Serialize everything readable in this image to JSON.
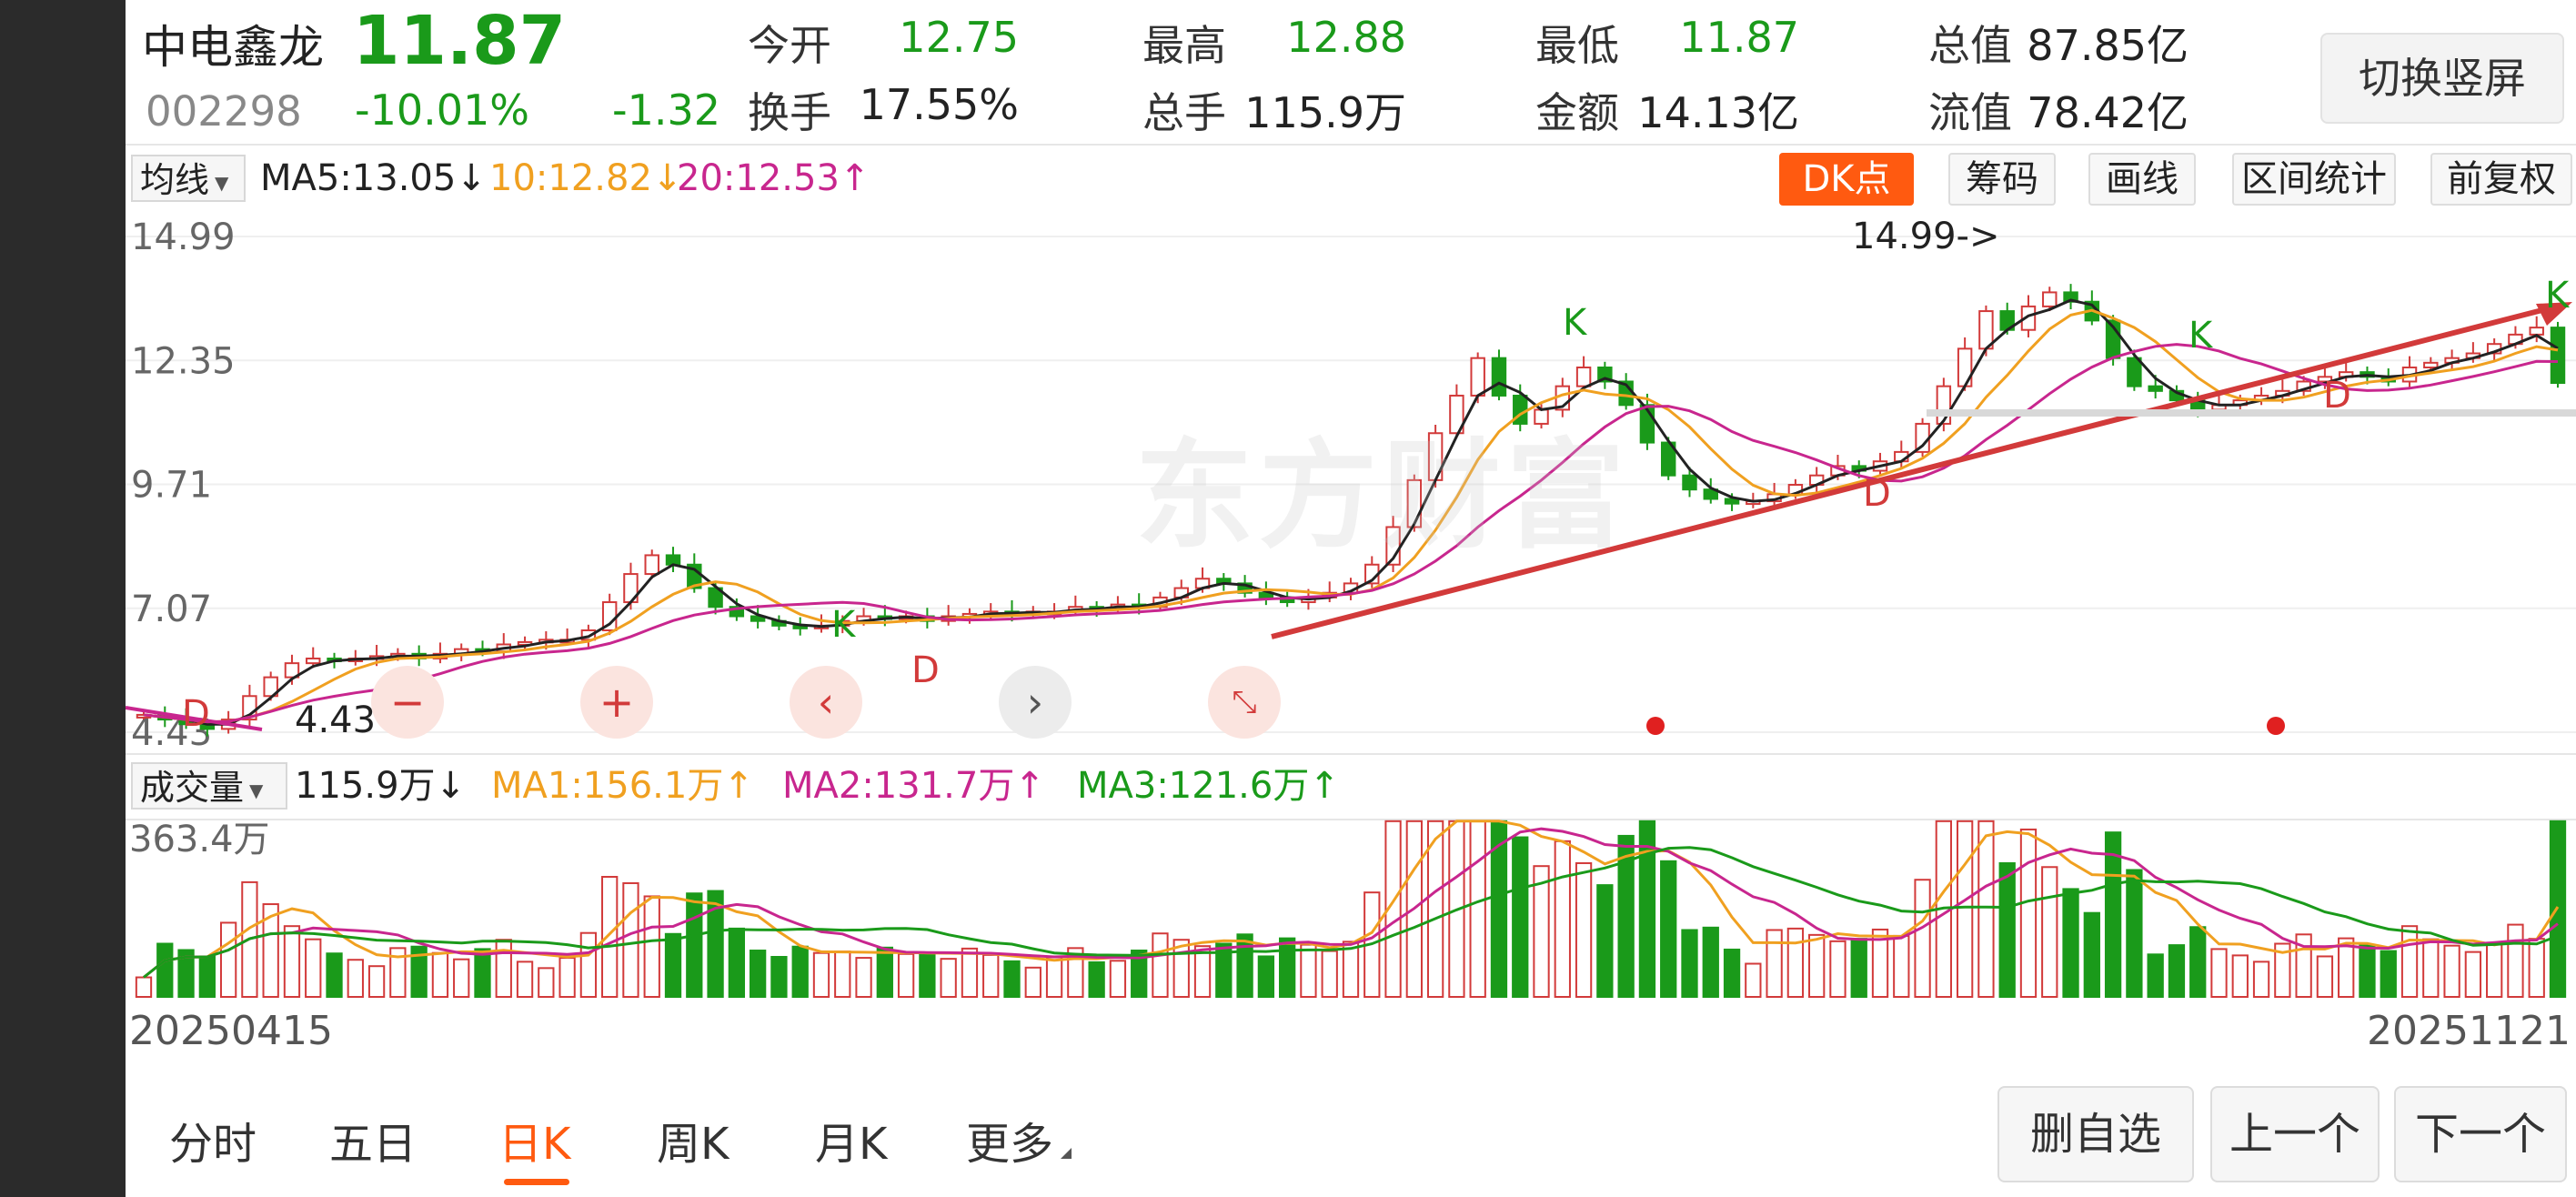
{
  "stock": {
    "name": "中电鑫龙",
    "code": "002298",
    "price": "11.87",
    "change_pct": "-10.01%",
    "change": "-1.32"
  },
  "quote": {
    "open_label": "今开",
    "open": "12.75",
    "high_label": "最高",
    "high": "12.88",
    "low_label": "最低",
    "low": "11.87",
    "mktcap_label": "总值",
    "mktcap": "87.85亿",
    "turnover_label": "换手",
    "turnover": "17.55%",
    "volume_label": "总手",
    "volume": "115.9万",
    "amount_label": "金额",
    "amount": "14.13亿",
    "float_label": "流值",
    "float": "78.42亿"
  },
  "switch_label": "切换竖屏",
  "ma_bar": {
    "selector": "均线",
    "ma5": "MA5:13.05↓",
    "ma10": "10:12.82↓",
    "ma20": "20:12.53↑"
  },
  "tools": {
    "dk": "DK点",
    "chips": "筹码",
    "draw": "画线",
    "range_stats": "区间统计",
    "adjust": "前复权"
  },
  "price_axis": [
    "14.99",
    "12.35",
    "9.71",
    "7.07",
    "4.43"
  ],
  "annotations": {
    "high_marker": "14.99->",
    "low_marker": "4.43",
    "k": "K",
    "d": "D"
  },
  "watermark": "东方财富",
  "volume_bar": {
    "selector": "成交量",
    "current": "115.9万↓",
    "ma1": "MA1:156.1万↑",
    "ma2": "MA2:131.7万↑",
    "ma3": "MA3:121.6万↑"
  },
  "volume_axis_max": "363.4万",
  "date_start": "20250415",
  "date_end": "20251121",
  "tabs": [
    "分时",
    "五日",
    "日K",
    "周K",
    "月K",
    "更多"
  ],
  "active_tab": "日K",
  "buttons": {
    "remove_watch": "删自选",
    "prev": "上一个",
    "next": "下一个"
  },
  "colors": {
    "up": "#d23a3a",
    "down": "#1a9a1a",
    "ma5": "#222222",
    "ma10": "#f0a020",
    "ma20": "#c8268e",
    "accent": "#ff5a10"
  },
  "chart_data": {
    "type": "candlestick",
    "price_range": [
      4.43,
      14.99
    ],
    "trend_points": [
      4.8,
      4.7,
      4.6,
      4.5,
      4.7,
      5.2,
      5.6,
      5.9,
      6.0,
      5.95,
      6.0,
      6.05,
      6.1,
      6.0,
      6.1,
      6.2,
      6.15,
      6.3,
      6.35,
      6.4,
      6.4,
      6.6,
      7.2,
      7.8,
      8.2,
      8.0,
      7.5,
      7.1,
      6.9,
      6.8,
      6.7,
      6.65,
      6.7,
      6.8,
      6.9,
      6.85,
      6.9,
      6.8,
      6.9,
      6.95,
      7.0,
      6.95,
      7.0,
      7.0,
      7.1,
      7.05,
      7.15,
      7.1,
      7.3,
      7.5,
      7.7,
      7.6,
      7.4,
      7.3,
      7.2,
      7.3,
      7.4,
      7.6,
      8.0,
      8.8,
      9.8,
      10.8,
      11.6,
      12.4,
      11.6,
      11.0,
      11.3,
      11.8,
      12.2,
      11.9,
      11.4,
      10.6,
      9.9,
      9.6,
      9.4,
      9.3,
      9.35,
      9.5,
      9.7,
      9.9,
      10.1,
      10.0,
      10.2,
      10.4,
      11.0,
      11.8,
      12.6,
      13.4,
      13.0,
      13.5,
      13.8,
      13.6,
      13.2,
      12.4,
      11.8,
      11.7,
      11.5,
      11.3,
      11.4,
      11.5,
      11.6,
      11.7,
      11.9,
      12.0,
      12.1,
      12.0,
      11.9,
      12.2,
      12.3,
      12.4,
      12.5,
      12.7,
      12.9,
      13.05,
      11.87
    ],
    "volume_max": 363.4,
    "volume_unit": "万"
  }
}
